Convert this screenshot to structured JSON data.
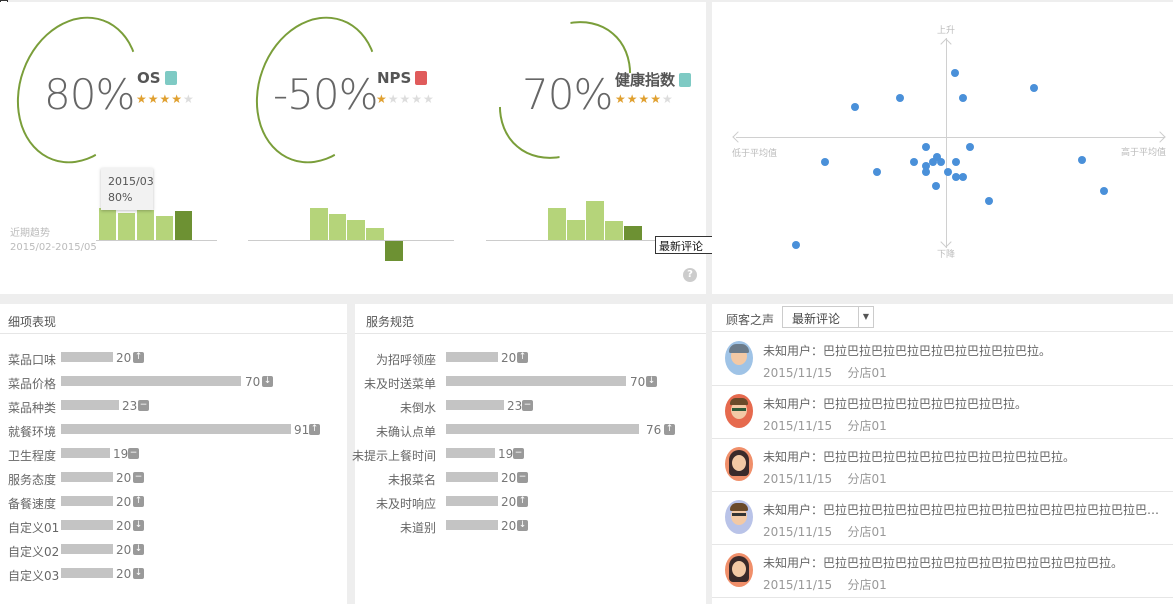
{
  "metrics": [
    {
      "value": "80%",
      "name": "OS",
      "rating": 4,
      "tag_color": "#7ecac4"
    },
    {
      "value": "-50%",
      "name": "NPS",
      "rating": 1,
      "tag_color": "#e05b5b"
    },
    {
      "value": "70%",
      "name": "健康指数",
      "rating": 4,
      "tag_color": "#7ecac4"
    }
  ],
  "trend": {
    "label": "近期趋势",
    "range": "2015/02-2015/05",
    "tooltip_date": "2015/03",
    "tooltip_value": "80%"
  },
  "dropdown_float": {
    "selected": "最新评论"
  },
  "help": "?",
  "scatter": {
    "top": "上升",
    "bottom": "下降",
    "left": "低于平均值",
    "right": "高于平均值"
  },
  "detail": {
    "title": "细项表现",
    "items": [
      {
        "label": "菜品口味",
        "value": "20",
        "icon": "up"
      },
      {
        "label": "菜品价格",
        "value": "70",
        "icon": "down"
      },
      {
        "label": "菜品种类",
        "value": "23",
        "icon": "flat"
      },
      {
        "label": "就餐环境",
        "value": "91",
        "icon": "up"
      },
      {
        "label": "卫生程度",
        "value": "19",
        "icon": "flat"
      },
      {
        "label": "服务态度",
        "value": "20",
        "icon": "flat"
      },
      {
        "label": "备餐速度",
        "value": "20",
        "icon": "up"
      },
      {
        "label": "自定义01",
        "value": "20",
        "icon": "down"
      },
      {
        "label": "自定义02",
        "value": "20",
        "icon": "down"
      },
      {
        "label": "自定义03",
        "value": "20",
        "icon": "down"
      }
    ]
  },
  "service": {
    "title": "服务规范",
    "items": [
      {
        "label": "为招呼领座",
        "value": "20",
        "icon": "up"
      },
      {
        "label": "未及时送菜单",
        "value": "70",
        "icon": "down"
      },
      {
        "label": "未倒水",
        "value": "23",
        "icon": "flat"
      },
      {
        "label": "未确认点单",
        "value": "76",
        "icon": "up"
      },
      {
        "label": "未提示上餐时间",
        "value": "19",
        "icon": "flat"
      },
      {
        "label": "未报菜名",
        "value": "20",
        "icon": "flat"
      },
      {
        "label": "未及时响应",
        "value": "20",
        "icon": "up"
      },
      {
        "label": "未道别",
        "value": "20",
        "icon": "down"
      }
    ]
  },
  "voice": {
    "title": "顾客之声",
    "filter": "最新评论",
    "reviews": [
      {
        "text": "未知用户：巴拉巴拉巴拉巴拉巴拉巴拉巴拉巴拉巴拉。",
        "date": "2015/11/15",
        "store": "分店01"
      },
      {
        "text": "未知用户：巴拉巴拉巴拉巴拉巴拉巴拉巴拉巴拉。",
        "date": "2015/11/15",
        "store": "分店01"
      },
      {
        "text": "未知用户：巴拉巴拉巴拉巴拉巴拉巴拉巴拉巴拉巴拉巴拉。",
        "date": "2015/11/15",
        "store": "分店01"
      },
      {
        "text": "未知用户：巴拉巴拉巴拉巴拉巴拉巴拉巴拉巴拉巴拉巴拉巴拉巴拉巴拉巴拉巴拉巴拉巴拉巴拉巴拉巴拉巴…",
        "date": "2015/11/15",
        "store": "分店01"
      },
      {
        "text": "未知用户：巴拉巴拉巴拉巴拉巴拉巴拉巴拉巴拉巴拉巴拉巴拉巴拉。",
        "date": "2015/11/15",
        "store": "分店01"
      }
    ]
  }
}
